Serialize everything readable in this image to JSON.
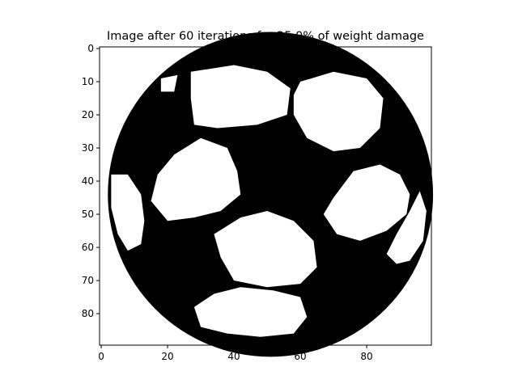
{
  "chart_data": {
    "type": "heatmap",
    "title": "Image after 60 iterations for 25.0% of weight damage",
    "xlabel": "",
    "ylabel": "",
    "image_width": 100,
    "image_height": 90,
    "colormap": "binary",
    "x_ticks": [
      0,
      20,
      40,
      60,
      80
    ],
    "y_ticks": [
      0,
      10,
      20,
      30,
      40,
      50,
      60,
      70,
      80
    ],
    "x_tick_labels": [
      "0",
      "20",
      "40",
      "60",
      "80"
    ],
    "y_tick_labels": [
      "0",
      "10",
      "20",
      "30",
      "40",
      "50",
      "60",
      "70",
      "80"
    ],
    "xlim": [
      -0.5,
      99.5
    ],
    "ylim": [
      89.5,
      -0.5
    ],
    "subject": "soccer ball",
    "pixel_values": {
      "foreground": 1,
      "background": 0
    },
    "colors": {
      "foreground": "#000000",
      "background": "#ffffff"
    }
  }
}
